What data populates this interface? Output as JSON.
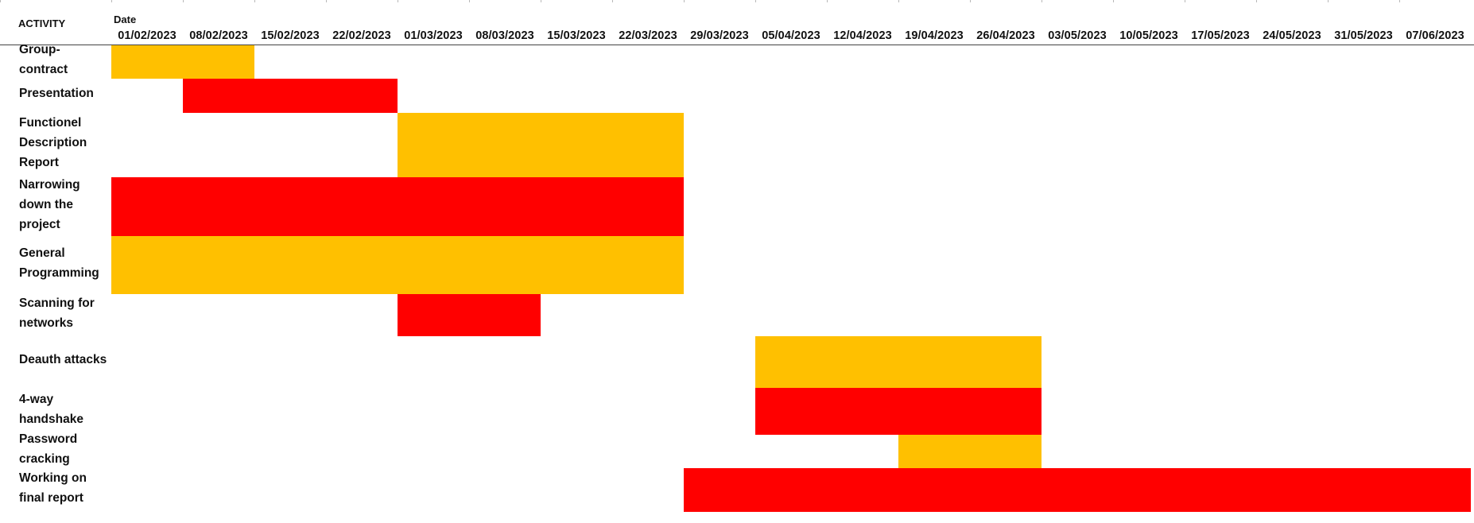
{
  "header": {
    "activity_label": "ACTIVITY",
    "date_label": "Date"
  },
  "chart_data": {
    "type": "bar",
    "subtype": "gantt",
    "title": "",
    "xlabel": "Date",
    "ylabel": "ACTIVITY",
    "x_ticks": [
      "01/02/2023",
      "08/02/2023",
      "15/02/2023",
      "22/02/2023",
      "01/03/2023",
      "08/03/2023",
      "15/03/2023",
      "22/03/2023",
      "29/03/2023",
      "05/04/2023",
      "12/04/2023",
      "19/04/2023",
      "26/04/2023",
      "03/05/2023",
      "10/05/2023",
      "17/05/2023",
      "24/05/2023",
      "31/05/2023",
      "07/06/2023"
    ],
    "colors": {
      "orange": "#FFC000",
      "red": "#FF0000"
    },
    "grid": false,
    "legend": "none",
    "tasks": [
      {
        "lines": [
          "Group-",
          "contract"
        ],
        "start": "01/02/2023",
        "end": "15/02/2023",
        "color": "orange"
      },
      {
        "lines": [
          "Presentation"
        ],
        "start": "08/02/2023",
        "end": "01/03/2023",
        "color": "red"
      },
      {
        "lines": [
          "Functionel",
          "Description",
          "Report"
        ],
        "start": "01/03/2023",
        "end": "29/03/2023",
        "color": "orange"
      },
      {
        "lines": [
          "Narrowing",
          "down the",
          "project"
        ],
        "start": "01/02/2023",
        "end": "29/03/2023",
        "color": "red"
      },
      {
        "lines": [
          "General",
          "Programming"
        ],
        "start": "01/02/2023",
        "end": "29/03/2023",
        "color": "orange"
      },
      {
        "lines": [
          "Scanning for",
          "networks"
        ],
        "start": "01/03/2023",
        "end": "15/03/2023",
        "color": "red"
      },
      {
        "lines": [
          "Deauth attacks"
        ],
        "start": "05/04/2023",
        "end": "03/05/2023",
        "color": "orange"
      },
      {
        "lines": [
          "4-way",
          "handshake"
        ],
        "start": "05/04/2023",
        "end": "03/05/2023",
        "color": "red"
      },
      {
        "lines": [
          "Password",
          "cracking"
        ],
        "start": "19/04/2023",
        "end": "03/05/2023",
        "color": "orange"
      },
      {
        "lines": [
          "Working on",
          "final report"
        ],
        "start": "29/03/2023",
        "end": "14/06/2023",
        "color": "red"
      }
    ]
  }
}
